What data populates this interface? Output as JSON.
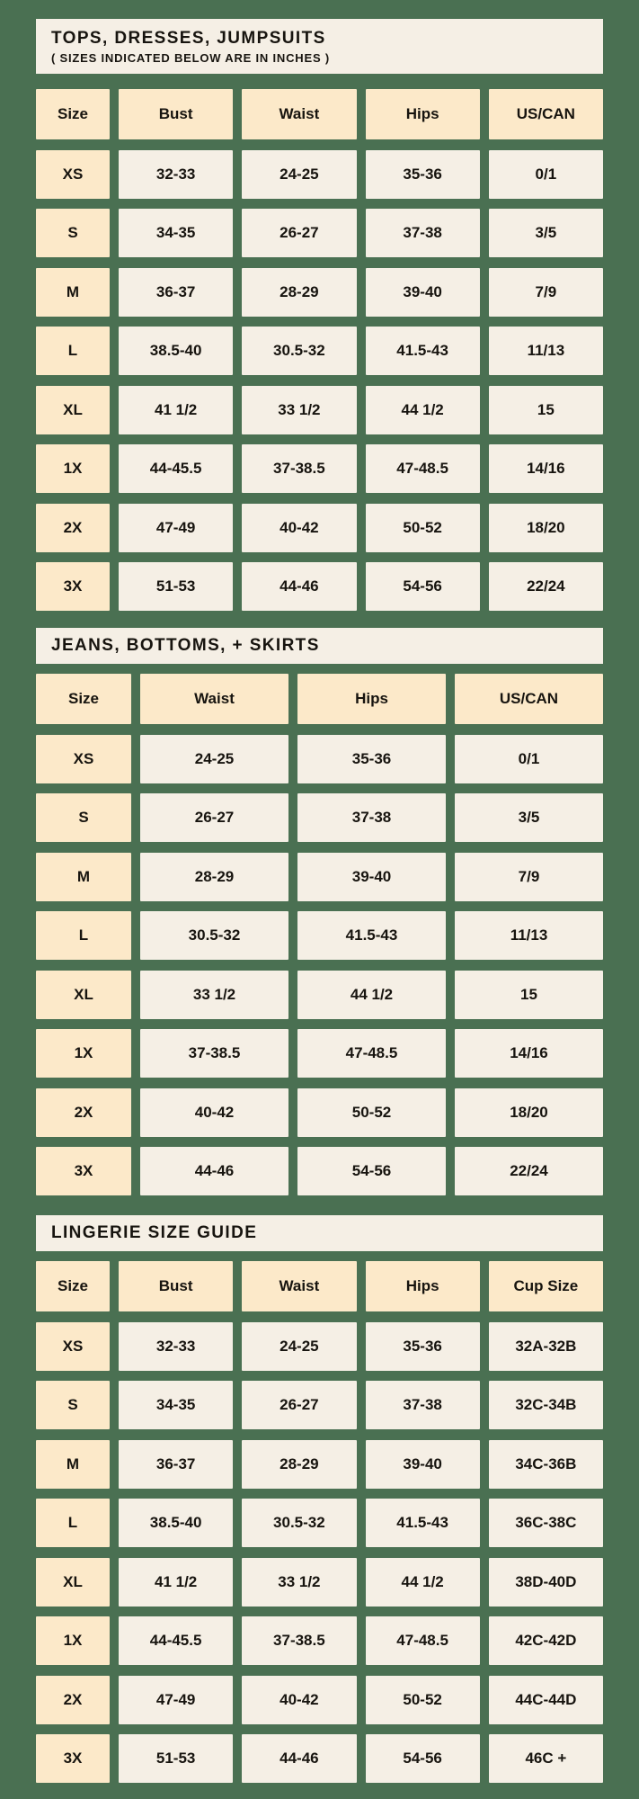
{
  "palette": {
    "background_green": "#4a7052",
    "cream": "#f5efe5",
    "peach": "#fce9c9",
    "text": "#17140f"
  },
  "tables": [
    {
      "title": "TOPS, DRESSES, JUMPSUITS",
      "subtitle": "( SIZES INDICATED BELOW ARE IN INCHES )",
      "columns": [
        "Size",
        "Bust",
        "Waist",
        "Hips",
        "US/CAN"
      ],
      "rows": [
        {
          "size": "XS",
          "cells": [
            "32-33",
            "24-25",
            "35-36",
            "0/1"
          ]
        },
        {
          "size": "S",
          "cells": [
            "34-35",
            "26-27",
            "37-38",
            "3/5"
          ]
        },
        {
          "size": "M",
          "cells": [
            "36-37",
            "28-29",
            "39-40",
            "7/9"
          ]
        },
        {
          "size": "L",
          "cells": [
            "38.5-40",
            "30.5-32",
            "41.5-43",
            "11/13"
          ]
        },
        {
          "size": "XL",
          "cells": [
            "41 1/2",
            "33 1/2",
            "44 1/2",
            "15"
          ]
        },
        {
          "size": "1X",
          "cells": [
            "44-45.5",
            "37-38.5",
            "47-48.5",
            "14/16"
          ]
        },
        {
          "size": "2X",
          "cells": [
            "47-49",
            "40-42",
            "50-52",
            "18/20"
          ]
        },
        {
          "size": "3X",
          "cells": [
            "51-53",
            "44-46",
            "54-56",
            "22/24"
          ]
        }
      ]
    },
    {
      "title": "JEANS, BOTTOMS, + SKIRTS",
      "columns": [
        "Size",
        "Waist",
        "Hips",
        "US/CAN"
      ],
      "rows": [
        {
          "size": "XS",
          "cells": [
            "24-25",
            "35-36",
            "0/1"
          ]
        },
        {
          "size": "S",
          "cells": [
            "26-27",
            "37-38",
            "3/5"
          ]
        },
        {
          "size": "M",
          "cells": [
            "28-29",
            "39-40",
            "7/9"
          ]
        },
        {
          "size": "L",
          "cells": [
            "30.5-32",
            "41.5-43",
            "11/13"
          ]
        },
        {
          "size": "XL",
          "cells": [
            "33 1/2",
            "44 1/2",
            "15"
          ]
        },
        {
          "size": "1X",
          "cells": [
            "37-38.5",
            "47-48.5",
            "14/16"
          ]
        },
        {
          "size": "2X",
          "cells": [
            "40-42",
            "50-52",
            "18/20"
          ]
        },
        {
          "size": "3X",
          "cells": [
            "44-46",
            "54-56",
            "22/24"
          ]
        }
      ]
    },
    {
      "title": "LINGERIE SIZE GUIDE",
      "columns": [
        "Size",
        "Bust",
        "Waist",
        "Hips",
        "Cup Size"
      ],
      "rows": [
        {
          "size": "XS",
          "cells": [
            "32-33",
            "24-25",
            "35-36",
            "32A-32B"
          ]
        },
        {
          "size": "S",
          "cells": [
            "34-35",
            "26-27",
            "37-38",
            "32C-34B"
          ]
        },
        {
          "size": "M",
          "cells": [
            "36-37",
            "28-29",
            "39-40",
            "34C-36B"
          ]
        },
        {
          "size": "L",
          "cells": [
            "38.5-40",
            "30.5-32",
            "41.5-43",
            "36C-38C"
          ]
        },
        {
          "size": "XL",
          "cells": [
            "41 1/2",
            "33 1/2",
            "44 1/2",
            "38D-40D"
          ]
        },
        {
          "size": "1X",
          "cells": [
            "44-45.5",
            "37-38.5",
            "47-48.5",
            "42C-42D"
          ]
        },
        {
          "size": "2X",
          "cells": [
            "47-49",
            "40-42",
            "50-52",
            "44C-44D"
          ]
        },
        {
          "size": "3X",
          "cells": [
            "51-53",
            "44-46",
            "54-56",
            "46C +"
          ]
        }
      ]
    }
  ]
}
